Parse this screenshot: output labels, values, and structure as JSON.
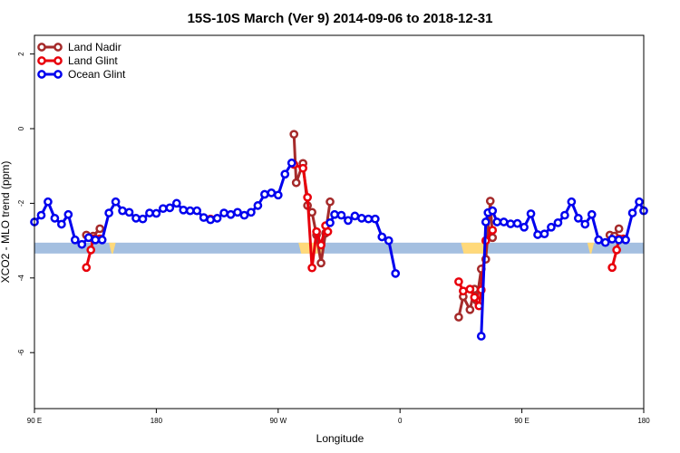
{
  "chart_data": {
    "type": "line",
    "title": "15S-10S March (Ver 9)   2014-09-06 to 2018-12-31",
    "xlabel": "Longitude",
    "ylabel": "XCO2 - MLO trend (ppm)",
    "xlim": [
      -90,
      180
    ],
    "ylim": [
      -7.5,
      2.5
    ],
    "x_ticks": [
      {
        "value": -90,
        "label": "90 E"
      },
      {
        "value": -36,
        "label": "180"
      },
      {
        "value": 18,
        "label": "90 W"
      },
      {
        "value": 72,
        "label": "0"
      },
      {
        "value": 126,
        "label": "90 E"
      },
      {
        "value": 180,
        "label": "180"
      }
    ],
    "y_ticks": [
      {
        "value": 2,
        "label": "2"
      },
      {
        "value": 0,
        "label": "0"
      },
      {
        "value": -2,
        "label": "-2"
      },
      {
        "value": -4,
        "label": "-4"
      },
      {
        "value": -6,
        "label": "-6"
      }
    ],
    "grid": false,
    "legend_position": "top-left",
    "land_band": {
      "y_center": -3.2,
      "land_color": "#FFD97A",
      "ocean_color": "#A4BFE0",
      "land_segments": [
        [
          -57,
          -54
        ],
        [
          27,
          39
        ],
        [
          99,
          111
        ],
        [
          155,
          158
        ]
      ]
    },
    "series": [
      {
        "name": "Land Nadir",
        "color": "#A52A2A",
        "segments": [
          [
            [
              -67,
              -2.85
            ],
            [
              -64,
              -2.88
            ],
            [
              -61,
              -2.68
            ]
          ],
          [
            [
              25,
              -0.15
            ],
            [
              26,
              -1.45
            ],
            [
              29,
              -0.93
            ],
            [
              31,
              -2.06
            ],
            [
              33,
              -2.24
            ],
            [
              35,
              -2.85
            ],
            [
              37,
              -3.6
            ],
            [
              39,
              -2.8
            ],
            [
              41,
              -1.96
            ]
          ],
          [
            [
              98,
              -5.05
            ],
            [
              100,
              -4.5
            ],
            [
              103,
              -4.85
            ],
            [
              105,
              -4.3
            ],
            [
              106,
              -4.6
            ],
            [
              108,
              -3.76
            ],
            [
              110,
              -3.5
            ],
            [
              112,
              -1.94
            ],
            [
              113,
              -2.92
            ]
          ],
          [
            [
              165,
              -2.85
            ],
            [
              167,
              -2.88
            ],
            [
              169,
              -2.68
            ]
          ]
        ]
      },
      {
        "name": "Land Glint",
        "color": "#E8000B",
        "segments": [
          [
            [
              -67,
              -3.72
            ],
            [
              -65,
              -3.25
            ],
            [
              -64,
              -2.95
            ],
            [
              -61,
              -2.95
            ]
          ],
          [
            [
              -12,
              -2.42
            ]
          ],
          [
            [
              25,
              -0.96
            ],
            [
              29,
              -1.06
            ],
            [
              31,
              -1.84
            ],
            [
              33,
              -3.73
            ],
            [
              35,
              -2.76
            ],
            [
              37,
              -3.12
            ],
            [
              39,
              -2.6
            ],
            [
              40,
              -2.76
            ]
          ],
          [
            [
              98,
              -4.1
            ],
            [
              100,
              -4.35
            ],
            [
              103,
              -4.3
            ],
            [
              105,
              -4.52
            ],
            [
              107,
              -4.75
            ],
            [
              108,
              -4.32
            ],
            [
              110,
              -3.0
            ],
            [
              113,
              -2.72
            ]
          ],
          [
            [
              166,
              -3.72
            ],
            [
              168,
              -3.25
            ],
            [
              169,
              -2.95
            ],
            [
              171,
              -2.95
            ]
          ]
        ]
      },
      {
        "name": "Ocean Glint",
        "color": "#0000EE",
        "segments": [
          [
            [
              -90,
              -2.5
            ],
            [
              -87,
              -2.32
            ],
            [
              -84,
              -1.96
            ],
            [
              -81,
              -2.4
            ],
            [
              -78,
              -2.56
            ],
            [
              -75,
              -2.3
            ],
            [
              -72,
              -2.98
            ],
            [
              -69,
              -3.1
            ],
            [
              -66,
              -2.92
            ],
            [
              -63,
              -2.98
            ],
            [
              -60,
              -2.98
            ],
            [
              -57,
              -2.26
            ],
            [
              -54,
              -1.96
            ],
            [
              -51,
              -2.2
            ],
            [
              -48,
              -2.24
            ],
            [
              -45,
              -2.4
            ],
            [
              -42,
              -2.42
            ],
            [
              -39,
              -2.26
            ],
            [
              -36,
              -2.27
            ],
            [
              -33,
              -2.14
            ],
            [
              -30,
              -2.12
            ],
            [
              -27,
              -2.0
            ],
            [
              -24,
              -2.18
            ],
            [
              -21,
              -2.2
            ],
            [
              -18,
              -2.2
            ],
            [
              -15,
              -2.38
            ],
            [
              -12,
              -2.44
            ],
            [
              -9,
              -2.4
            ],
            [
              -6,
              -2.26
            ],
            [
              -3,
              -2.3
            ],
            [
              0,
              -2.24
            ],
            [
              3,
              -2.32
            ],
            [
              6,
              -2.24
            ],
            [
              9,
              -2.06
            ],
            [
              12,
              -1.76
            ],
            [
              15,
              -1.72
            ],
            [
              18,
              -1.78
            ],
            [
              21,
              -1.22
            ],
            [
              24,
              -0.92
            ]
          ],
          [
            [
              41,
              -2.52
            ],
            [
              43,
              -2.3
            ],
            [
              46,
              -2.32
            ],
            [
              49,
              -2.46
            ],
            [
              52,
              -2.34
            ],
            [
              55,
              -2.4
            ],
            [
              58,
              -2.42
            ],
            [
              61,
              -2.42
            ],
            [
              64,
              -2.9
            ],
            [
              67,
              -3.0
            ],
            [
              70,
              -3.88
            ]
          ],
          [
            [
              108,
              -5.56
            ],
            [
              110,
              -2.5
            ],
            [
              111,
              -2.25
            ],
            [
              113,
              -2.2
            ],
            [
              115,
              -2.5
            ],
            [
              118,
              -2.5
            ],
            [
              121,
              -2.55
            ],
            [
              124,
              -2.54
            ],
            [
              127,
              -2.64
            ],
            [
              130,
              -2.28
            ],
            [
              133,
              -2.84
            ],
            [
              136,
              -2.82
            ],
            [
              139,
              -2.64
            ],
            [
              142,
              -2.52
            ],
            [
              145,
              -2.32
            ],
            [
              148,
              -1.96
            ],
            [
              151,
              -2.4
            ],
            [
              154,
              -2.56
            ],
            [
              157,
              -2.3
            ],
            [
              160,
              -2.98
            ],
            [
              163,
              -3.05
            ],
            [
              166,
              -2.96
            ],
            [
              169,
              -2.98
            ],
            [
              172,
              -2.98
            ],
            [
              175,
              -2.26
            ],
            [
              178,
              -1.96
            ],
            [
              180,
              -2.2
            ]
          ]
        ]
      }
    ]
  }
}
